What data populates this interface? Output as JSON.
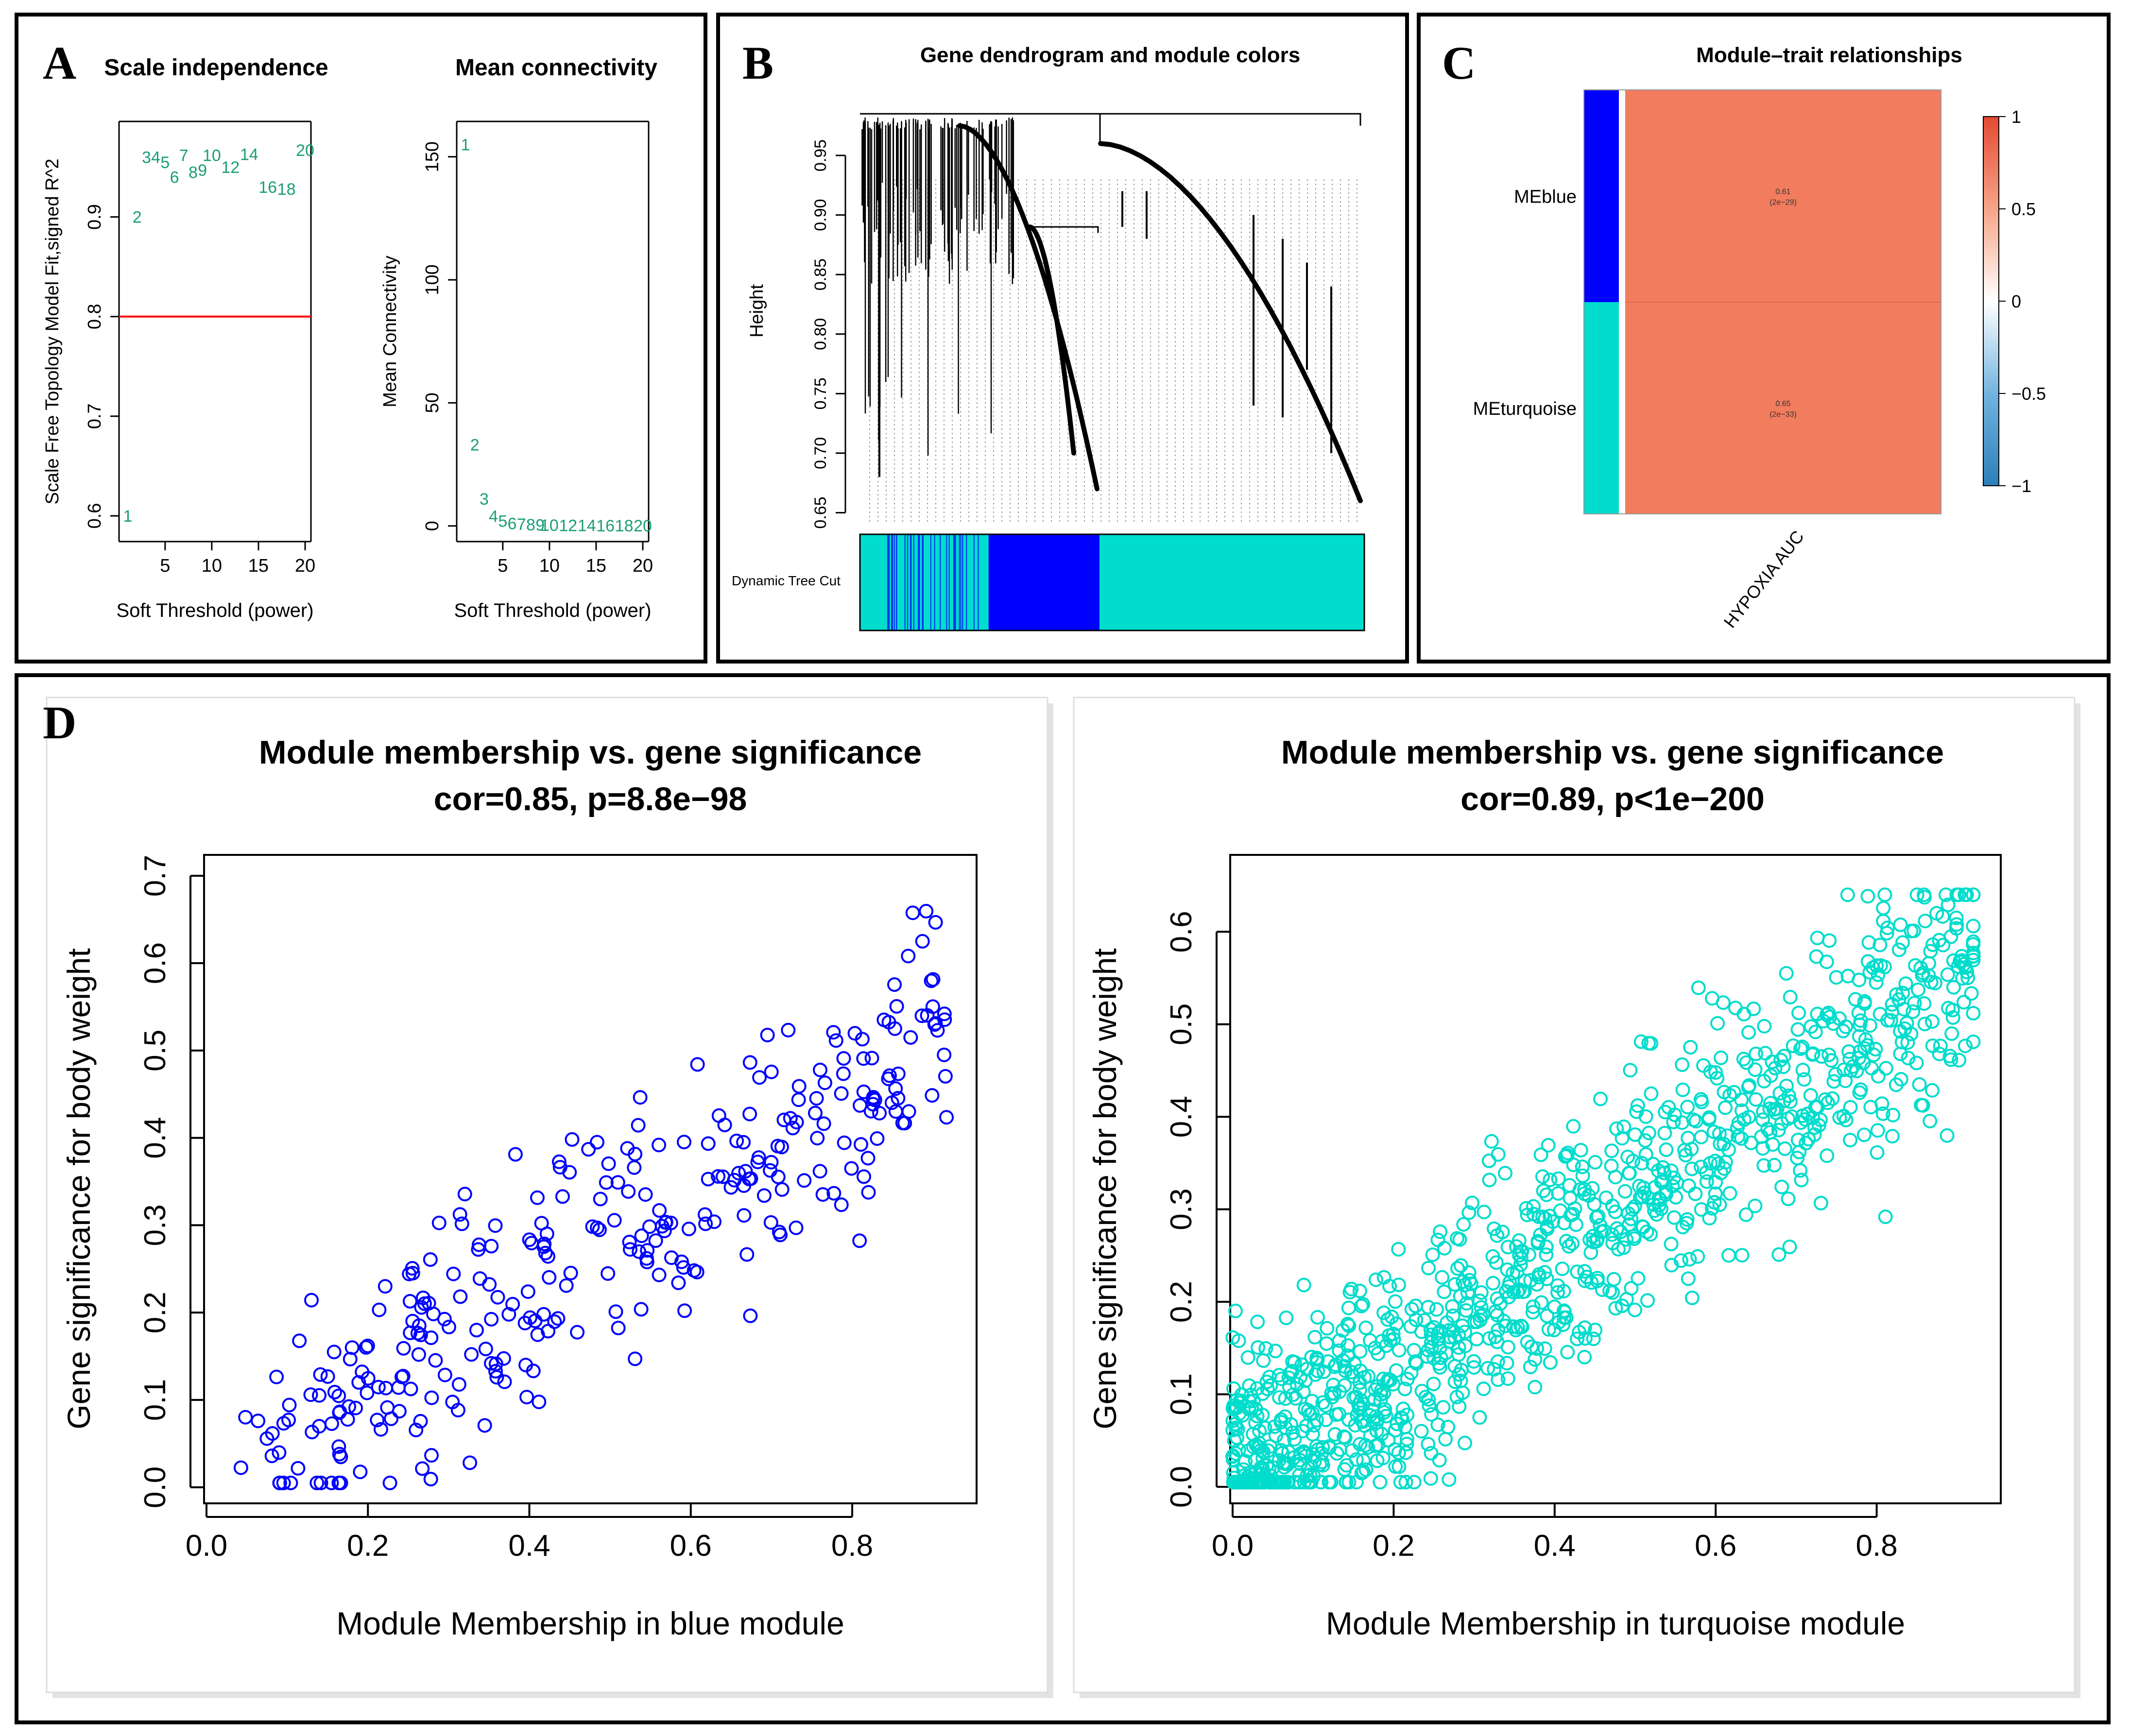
{
  "colors": {
    "scale_text": "#1b9e77",
    "threshold_line": "#ff0000",
    "blue": "#0000ff",
    "turquoise": "#00ddcc",
    "heat_cell": "#f27c5e",
    "heat_high": "#e34a33",
    "heat_low": "#2c7fb8"
  },
  "panels": {
    "A": {
      "letter": "A"
    },
    "B": {
      "letter": "B"
    },
    "C": {
      "letter": "C"
    },
    "D": {
      "letter": "D"
    }
  },
  "chart_data": [
    {
      "id": "scale-independence",
      "type": "scatter",
      "title": "Scale independence",
      "xlabel": "Soft Threshold (power)",
      "ylabel": "Scale Free Topology Model Fit,signed R^2",
      "xlim": [
        1,
        20
      ],
      "ylim": [
        0.58,
        0.99
      ],
      "xticks": [
        5,
        10,
        15,
        20
      ],
      "yticks": [
        0.6,
        0.7,
        0.8,
        0.9
      ],
      "hline": 0.8,
      "x": [
        1,
        2,
        3,
        4,
        5,
        6,
        7,
        8,
        9,
        10,
        12,
        14,
        16,
        18,
        20
      ],
      "y": [
        0.6,
        0.9,
        0.96,
        0.96,
        0.955,
        0.94,
        0.962,
        0.945,
        0.947,
        0.962,
        0.95,
        0.963,
        0.93,
        0.928,
        0.967
      ],
      "labels": [
        "1",
        "2",
        "3",
        "4",
        "5",
        "6",
        "7",
        "8",
        "9",
        "10",
        "12",
        "14",
        "16",
        "18",
        "20"
      ]
    },
    {
      "id": "mean-connectivity",
      "type": "scatter",
      "title": "Mean connectivity",
      "xlabel": "Soft Threshold (power)",
      "ylabel": "Mean Connectivity",
      "xlim": [
        1,
        20
      ],
      "ylim": [
        -4,
        162
      ],
      "xticks": [
        5,
        10,
        15,
        20
      ],
      "yticks": [
        0,
        50,
        100,
        150
      ],
      "x": [
        1,
        2,
        3,
        4,
        5,
        6,
        7,
        8,
        9,
        10,
        12,
        14,
        16,
        18,
        20
      ],
      "y": [
        155,
        33,
        11,
        4,
        2,
        1,
        0.7,
        0.5,
        0.4,
        0.3,
        0.2,
        0.2,
        0.1,
        0.1,
        0.1
      ],
      "labels": [
        "1",
        "2",
        "3",
        "4",
        "5",
        "6",
        "7",
        "8",
        "9",
        "10",
        "12",
        "14",
        "16",
        "18",
        "20"
      ]
    },
    {
      "id": "gene-dendrogram",
      "type": "dendrogram",
      "title": "Gene dendrogram and module colors",
      "ylabel": "Height",
      "ylim": [
        0.64,
        0.99
      ],
      "yticks": [
        0.65,
        0.7,
        0.75,
        0.8,
        0.85,
        0.9,
        0.95
      ],
      "color_bar_label": "Dynamic Tree Cut",
      "color_segments": [
        {
          "module": "turquoise",
          "from": 0.0,
          "to": 0.255
        },
        {
          "module": "blue",
          "from": 0.255,
          "to": 0.475
        },
        {
          "module": "turquoise",
          "from": 0.475,
          "to": 1.0
        }
      ]
    },
    {
      "id": "module-trait",
      "type": "heatmap",
      "title": "Module–trait relationships",
      "rows": [
        "MEblue",
        "MEturquoise"
      ],
      "columns": [
        "HYPOXIA AUC"
      ],
      "values": [
        [
          0.61
        ],
        [
          0.65
        ]
      ],
      "cell_text": [
        "0.61",
        "0.65"
      ],
      "cell_pvalues": [
        "(2e−29)",
        "(2e−33)"
      ],
      "legend_ticks": [
        "1",
        "0.5",
        "0",
        "−0.5",
        "−1"
      ],
      "scale_range": [
        -1,
        1
      ]
    },
    {
      "id": "mm-gs-blue",
      "type": "scatter",
      "title": "Module membership vs. gene significance",
      "subtitle": "cor=0.85, p=8.8e−98",
      "xlabel": "Module Membership in blue module",
      "ylabel": "Gene significance for body weight",
      "xlim": [
        0.0,
        0.93
      ],
      "ylim": [
        -0.01,
        0.71
      ],
      "xticks": [
        "0.0",
        "0.2",
        "0.4",
        "0.6",
        "0.8"
      ],
      "yticks": [
        "0.0",
        "0.1",
        "0.2",
        "0.3",
        "0.4",
        "0.5",
        "0.6",
        "0.7"
      ],
      "color": "blue",
      "n_points": 320,
      "correlation": 0.85
    },
    {
      "id": "mm-gs-turquoise",
      "type": "scatter",
      "title": "Module membership vs. gene significance",
      "subtitle": "cor=0.89, p<1e−200",
      "xlabel": "Module Membership in turquoise module",
      "ylabel": "Gene significance for body weight",
      "xlim": [
        0.0,
        0.93
      ],
      "ylim": [
        -0.01,
        0.67
      ],
      "xticks": [
        "0.0",
        "0.2",
        "0.4",
        "0.6",
        "0.8"
      ],
      "yticks": [
        "0.0",
        "0.1",
        "0.2",
        "0.3",
        "0.4",
        "0.5",
        "0.6"
      ],
      "color": "turquoise",
      "n_points": 1100,
      "correlation": 0.89
    }
  ]
}
